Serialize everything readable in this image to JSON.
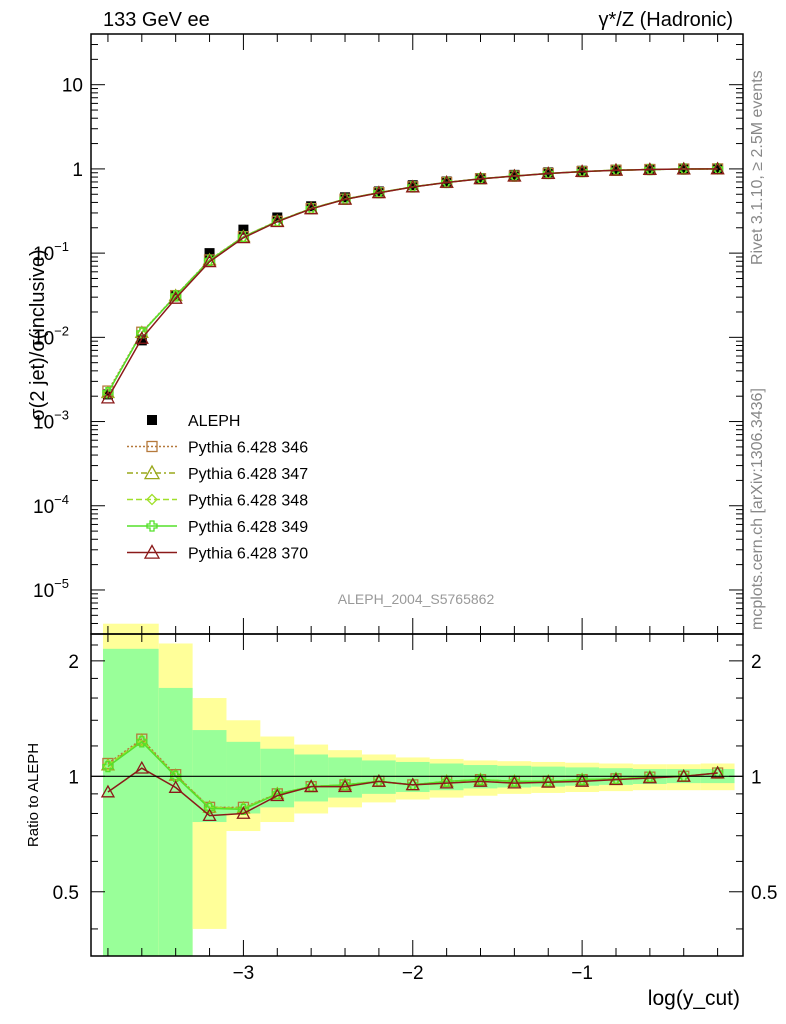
{
  "header": {
    "left": "133 GeV ee",
    "right": "γ*/Z (Hadronic)"
  },
  "side_labels": {
    "upper": "Rivet 3.1.10, ≥ 2.5M events",
    "lower": "mcplots.cern.ch [arXiv:1306.3436]"
  },
  "watermark": "ALEPH_2004_S5765862",
  "chart_data": [
    {
      "type": "line",
      "panel": "main",
      "ylabel": "σ(2 jet)/σ(inclusive)",
      "yscale": "log",
      "ylim": [
        3e-06,
        40
      ],
      "yticks": [
        "10^-5",
        "10^-4",
        "10^-3",
        "10^-2",
        "10^-1",
        "1",
        "10"
      ],
      "xlim": [
        -3.9,
        -0.05
      ],
      "x": [
        -3.8,
        -3.6,
        -3.4,
        -3.2,
        -3.0,
        -2.8,
        -2.6,
        -2.4,
        -2.2,
        -2.0,
        -1.8,
        -1.6,
        -1.4,
        -1.2,
        -1.0,
        -0.8,
        -0.6,
        -0.4,
        -0.2
      ],
      "series": [
        {
          "name": "ALEPH",
          "color": "#000000",
          "marker": "square-filled",
          "values": [
            0.0021,
            0.0092,
            0.031,
            0.1,
            0.19,
            0.265,
            0.36,
            0.46,
            0.54,
            0.64,
            0.71,
            0.78,
            0.85,
            0.91,
            0.95,
            0.98,
            0.99,
            0.995,
            0.998
          ]
        },
        {
          "name": "Pythia 6.428 346",
          "color": "#b5793c",
          "marker": "square-open",
          "dash": "2,2",
          "values": [
            0.0023,
            0.0115,
            0.0313,
            0.083,
            0.157,
            0.239,
            0.338,
            0.437,
            0.523,
            0.612,
            0.691,
            0.764,
            0.823,
            0.883,
            0.93,
            0.965,
            0.984,
            0.997,
            1.0
          ]
        },
        {
          "name": "Pythia 6.428 347",
          "color": "#9aa81c",
          "marker": "triangle-open",
          "dash": "6,3,2,3",
          "values": [
            0.0022,
            0.0114,
            0.0312,
            0.083,
            0.157,
            0.24,
            0.339,
            0.438,
            0.524,
            0.613,
            0.692,
            0.765,
            0.824,
            0.884,
            0.931,
            0.966,
            0.985,
            0.997,
            1.0
          ]
        },
        {
          "name": "Pythia 6.428 348",
          "color": "#a0e02a",
          "marker": "diamond-open",
          "dash": "6,3",
          "values": [
            0.0022,
            0.0113,
            0.0311,
            0.082,
            0.156,
            0.239,
            0.338,
            0.437,
            0.523,
            0.612,
            0.691,
            0.764,
            0.823,
            0.883,
            0.93,
            0.965,
            0.984,
            0.997,
            1.0
          ]
        },
        {
          "name": "Pythia 6.428 349",
          "color": "#55e02a",
          "marker": "cross-open",
          "dash": "",
          "values": [
            0.0022,
            0.0113,
            0.031,
            0.082,
            0.156,
            0.238,
            0.337,
            0.436,
            0.522,
            0.611,
            0.69,
            0.763,
            0.822,
            0.882,
            0.929,
            0.964,
            0.983,
            0.996,
            1.0
          ]
        },
        {
          "name": "Pythia 6.428 370",
          "color": "#8b1a1a",
          "marker": "triangle-open",
          "dash": "",
          "values": [
            0.0019,
            0.0097,
            0.029,
            0.079,
            0.152,
            0.236,
            0.335,
            0.435,
            0.52,
            0.61,
            0.69,
            0.762,
            0.821,
            0.881,
            0.929,
            0.964,
            0.983,
            0.996,
            1.0
          ]
        }
      ]
    },
    {
      "type": "line",
      "panel": "ratio",
      "xlabel": "log(y_cut)",
      "ylabel": "Ratio to ALEPH",
      "ylim": [
        0.34,
        2.35
      ],
      "yticks": [
        0.5,
        1,
        2
      ],
      "xticks": [
        -3,
        -2,
        -1
      ],
      "xlim": [
        -3.9,
        -0.05
      ],
      "bins": [
        [
          -3.9,
          -3.5
        ],
        [
          -3.5,
          -3.3
        ],
        [
          -3.3,
          -3.1
        ],
        [
          -3.1,
          -2.9
        ],
        [
          -2.9,
          -2.7
        ],
        [
          -2.7,
          -2.5
        ],
        [
          -2.5,
          -2.3
        ],
        [
          -2.3,
          -2.1
        ],
        [
          -2.1,
          -1.9
        ],
        [
          -1.9,
          -1.7
        ],
        [
          -1.7,
          -1.5
        ],
        [
          -1.5,
          -1.3
        ],
        [
          -1.3,
          -1.1
        ],
        [
          -1.1,
          -0.9
        ],
        [
          -0.9,
          -0.7
        ],
        [
          -0.7,
          -0.5
        ],
        [
          -0.5,
          -0.3
        ],
        [
          -0.3,
          -0.1
        ]
      ],
      "band_inner": [
        [
          0.25,
          2.15
        ],
        [
          0.25,
          1.7
        ],
        [
          0.76,
          1.32
        ],
        [
          0.8,
          1.23
        ],
        [
          0.83,
          1.18
        ],
        [
          0.86,
          1.14
        ],
        [
          0.88,
          1.12
        ],
        [
          0.9,
          1.1
        ],
        [
          0.91,
          1.09
        ],
        [
          0.92,
          1.08
        ],
        [
          0.93,
          1.07
        ],
        [
          0.935,
          1.065
        ],
        [
          0.94,
          1.06
        ],
        [
          0.945,
          1.055
        ],
        [
          0.95,
          1.05
        ],
        [
          0.955,
          1.045
        ],
        [
          0.96,
          1.045
        ],
        [
          0.96,
          1.045
        ]
      ],
      "band_outer": [
        [
          0.25,
          2.5
        ],
        [
          0.25,
          2.22
        ],
        [
          0.4,
          1.6
        ],
        [
          0.72,
          1.4
        ],
        [
          0.76,
          1.27
        ],
        [
          0.8,
          1.21
        ],
        [
          0.83,
          1.17
        ],
        [
          0.855,
          1.14
        ],
        [
          0.87,
          1.12
        ],
        [
          0.88,
          1.11
        ],
        [
          0.89,
          1.1
        ],
        [
          0.9,
          1.095
        ],
        [
          0.905,
          1.09
        ],
        [
          0.91,
          1.085
        ],
        [
          0.915,
          1.08
        ],
        [
          0.92,
          1.075
        ],
        [
          0.92,
          1.075
        ],
        [
          0.92,
          1.08
        ]
      ],
      "x": [
        -3.8,
        -3.6,
        -3.4,
        -3.2,
        -3.0,
        -2.8,
        -2.6,
        -2.4,
        -2.2,
        -2.0,
        -1.8,
        -1.6,
        -1.4,
        -1.2,
        -1.0,
        -0.8,
        -0.6,
        -0.4,
        -0.2
      ],
      "series": [
        {
          "name": "Pythia 6.428 346",
          "color": "#b5793c",
          "marker": "square-open",
          "dash": "2,2",
          "values": [
            1.08,
            1.25,
            1.01,
            0.83,
            0.83,
            0.9,
            0.94,
            0.95,
            0.97,
            0.95,
            0.97,
            0.98,
            0.97,
            0.97,
            0.98,
            0.985,
            0.995,
            1.0,
            1.02
          ]
        },
        {
          "name": "Pythia 6.428 347",
          "color": "#9aa81c",
          "marker": "triangle-open",
          "dash": "6,3,2,3",
          "values": [
            1.07,
            1.24,
            1.005,
            0.83,
            0.826,
            0.9,
            0.94,
            0.95,
            0.97,
            0.95,
            0.97,
            0.98,
            0.97,
            0.97,
            0.98,
            0.985,
            0.995,
            1.0,
            1.02
          ]
        },
        {
          "name": "Pythia 6.428 348",
          "color": "#a0e02a",
          "marker": "diamond-open",
          "dash": "6,3",
          "values": [
            1.07,
            1.24,
            1.0,
            0.83,
            0.825,
            0.9,
            0.94,
            0.95,
            0.97,
            0.95,
            0.97,
            0.98,
            0.97,
            0.97,
            0.98,
            0.985,
            0.995,
            1.0,
            1.02
          ]
        },
        {
          "name": "Pythia 6.428 349",
          "color": "#55e02a",
          "marker": "cross-open",
          "dash": "",
          "values": [
            1.06,
            1.23,
            1.0,
            0.825,
            0.82,
            0.9,
            0.94,
            0.95,
            0.97,
            0.95,
            0.97,
            0.98,
            0.97,
            0.97,
            0.98,
            0.985,
            0.995,
            1.0,
            1.02
          ]
        },
        {
          "name": "Pythia 6.428 370",
          "color": "#8b1a1a",
          "marker": "triangle-open",
          "dash": "",
          "values": [
            0.91,
            1.05,
            0.935,
            0.79,
            0.8,
            0.89,
            0.94,
            0.94,
            0.97,
            0.95,
            0.96,
            0.97,
            0.96,
            0.965,
            0.97,
            0.98,
            0.99,
            1.0,
            1.02
          ]
        }
      ]
    }
  ]
}
